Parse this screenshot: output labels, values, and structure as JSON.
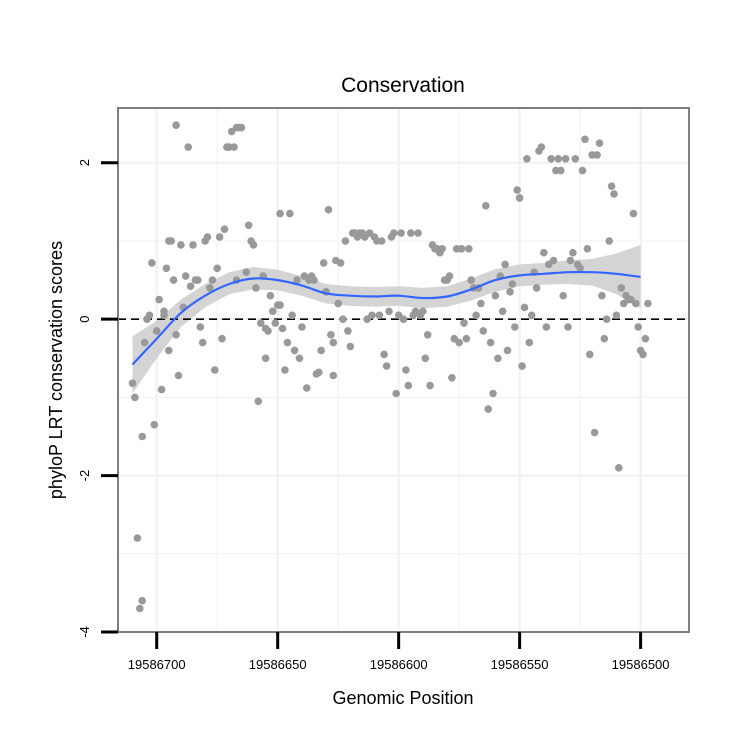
{
  "chart_data": {
    "type": "scatter",
    "title": "Conservation",
    "xlabel": "Genomic Position",
    "ylabel": "phyloP LRT conservation scores",
    "x_reversed": true,
    "xlim": [
      19586716,
      19586480
    ],
    "ylim": [
      -4,
      2.7
    ],
    "x_ticks": [
      19586700,
      19586650,
      19586600,
      19586550,
      19586500
    ],
    "x_tick_labels": [
      "19586700",
      "19586650",
      "19586600",
      "19586550",
      "19586500"
    ],
    "y_ticks": [
      -4,
      -2,
      0,
      2
    ],
    "y_tick_labels": [
      "-4",
      "-2",
      "0",
      "2"
    ],
    "reference_line": {
      "y": 0,
      "style": "dashed"
    },
    "grid": true,
    "colors": {
      "points": "#999999",
      "smooth_line": "#3366FF",
      "ribbon": "#cccccc",
      "grid": "#f0f0f0",
      "panel_border": "#7f7f7f"
    },
    "points": [
      {
        "x": 19586710,
        "y": -0.82
      },
      {
        "x": 19586709,
        "y": -1.0
      },
      {
        "x": 19586708,
        "y": -2.8
      },
      {
        "x": 19586707,
        "y": -3.7
      },
      {
        "x": 19586706,
        "y": -3.6
      },
      {
        "x": 19586706,
        "y": -1.5
      },
      {
        "x": 19586705,
        "y": -0.3
      },
      {
        "x": 19586704,
        "y": 0.0
      },
      {
        "x": 19586703,
        "y": 0.05
      },
      {
        "x": 19586702,
        "y": 0.72
      },
      {
        "x": 19586701,
        "y": -1.35
      },
      {
        "x": 19586700,
        "y": -0.15
      },
      {
        "x": 19586699,
        "y": 0.25
      },
      {
        "x": 19586698,
        "y": -0.9
      },
      {
        "x": 19586697,
        "y": 0.05
      },
      {
        "x": 19586697,
        "y": 0.1
      },
      {
        "x": 19586696,
        "y": 0.65
      },
      {
        "x": 19586695,
        "y": -0.4
      },
      {
        "x": 19586695,
        "y": 1.0
      },
      {
        "x": 19586694,
        "y": 1.0
      },
      {
        "x": 19586693,
        "y": 0.5
      },
      {
        "x": 19586692,
        "y": 2.48
      },
      {
        "x": 19586692,
        "y": -0.2
      },
      {
        "x": 19586691,
        "y": -0.72
      },
      {
        "x": 19586690,
        "y": 0.95
      },
      {
        "x": 19586689,
        "y": 0.15
      },
      {
        "x": 19586688,
        "y": 0.55
      },
      {
        "x": 19586687,
        "y": 2.2
      },
      {
        "x": 19586686,
        "y": 0.42
      },
      {
        "x": 19586685,
        "y": 0.95
      },
      {
        "x": 19586684,
        "y": 0.5
      },
      {
        "x": 19586683,
        "y": 0.5
      },
      {
        "x": 19586682,
        "y": -0.1
      },
      {
        "x": 19586681,
        "y": -0.3
      },
      {
        "x": 19586680,
        "y": 1.0
      },
      {
        "x": 19586679,
        "y": 1.05
      },
      {
        "x": 19586678,
        "y": 0.4
      },
      {
        "x": 19586677,
        "y": 0.5
      },
      {
        "x": 19586676,
        "y": -0.65
      },
      {
        "x": 19586675,
        "y": 0.65
      },
      {
        "x": 19586674,
        "y": 1.05
      },
      {
        "x": 19586673,
        "y": -0.25
      },
      {
        "x": 19586672,
        "y": 1.15
      },
      {
        "x": 19586671,
        "y": 2.2
      },
      {
        "x": 19586670,
        "y": 2.2
      },
      {
        "x": 19586669,
        "y": 2.4
      },
      {
        "x": 19586668,
        "y": 2.2
      },
      {
        "x": 19586667,
        "y": 2.45
      },
      {
        "x": 19586667,
        "y": 0.5
      },
      {
        "x": 19586666,
        "y": 2.45
      },
      {
        "x": 19586665,
        "y": 2.45
      },
      {
        "x": 19586663,
        "y": 0.6
      },
      {
        "x": 19586662,
        "y": 1.2
      },
      {
        "x": 19586661,
        "y": 1.0
      },
      {
        "x": 19586660,
        "y": 0.95
      },
      {
        "x": 19586659,
        "y": 0.4
      },
      {
        "x": 19586658,
        "y": -1.05
      },
      {
        "x": 19586657,
        "y": -0.05
      },
      {
        "x": 19586656,
        "y": 0.55
      },
      {
        "x": 19586655,
        "y": -0.12
      },
      {
        "x": 19586655,
        "y": -0.5
      },
      {
        "x": 19586654,
        "y": -0.15
      },
      {
        "x": 19586653,
        "y": 0.3
      },
      {
        "x": 19586652,
        "y": 0.1
      },
      {
        "x": 19586651,
        "y": -0.05
      },
      {
        "x": 19586650,
        "y": 0.18
      },
      {
        "x": 19586649,
        "y": 1.35
      },
      {
        "x": 19586649,
        "y": 0.18
      },
      {
        "x": 19586648,
        "y": -0.12
      },
      {
        "x": 19586647,
        "y": -0.65
      },
      {
        "x": 19586646,
        "y": -0.3
      },
      {
        "x": 19586645,
        "y": 1.35
      },
      {
        "x": 19586644,
        "y": 0.05
      },
      {
        "x": 19586643,
        "y": -0.4
      },
      {
        "x": 19586642,
        "y": 0.5
      },
      {
        "x": 19586641,
        "y": -0.5
      },
      {
        "x": 19586640,
        "y": -0.1
      },
      {
        "x": 19586639,
        "y": 0.55
      },
      {
        "x": 19586638,
        "y": -0.88
      },
      {
        "x": 19586637,
        "y": 0.5
      },
      {
        "x": 19586636,
        "y": 0.55
      },
      {
        "x": 19586635,
        "y": 0.5
      },
      {
        "x": 19586634,
        "y": -0.7
      },
      {
        "x": 19586633,
        "y": -0.68
      },
      {
        "x": 19586632,
        "y": -0.4
      },
      {
        "x": 19586631,
        "y": 0.72
      },
      {
        "x": 19586630,
        "y": 0.35
      },
      {
        "x": 19586629,
        "y": 1.4
      },
      {
        "x": 19586628,
        "y": -0.2
      },
      {
        "x": 19586627,
        "y": -0.3
      },
      {
        "x": 19586627,
        "y": -0.72
      },
      {
        "x": 19586626,
        "y": 0.75
      },
      {
        "x": 19586625,
        "y": 0.2
      },
      {
        "x": 19586624,
        "y": 0.72
      },
      {
        "x": 19586623,
        "y": 0.0
      },
      {
        "x": 19586622,
        "y": 1.0
      },
      {
        "x": 19586621,
        "y": -0.15
      },
      {
        "x": 19586620,
        "y": -0.35
      },
      {
        "x": 19586619,
        "y": 1.1
      },
      {
        "x": 19586618,
        "y": 1.1
      },
      {
        "x": 19586617,
        "y": 1.05
      },
      {
        "x": 19586616,
        "y": 1.1
      },
      {
        "x": 19586615,
        "y": 1.1
      },
      {
        "x": 19586614,
        "y": 1.05
      },
      {
        "x": 19586613,
        "y": 0.0
      },
      {
        "x": 19586612,
        "y": 1.1
      },
      {
        "x": 19586611,
        "y": 0.05
      },
      {
        "x": 19586610,
        "y": 1.05
      },
      {
        "x": 19586609,
        "y": 1.0
      },
      {
        "x": 19586608,
        "y": 0.05
      },
      {
        "x": 19586607,
        "y": 1.0
      },
      {
        "x": 19586606,
        "y": -0.45
      },
      {
        "x": 19586605,
        "y": -0.6
      },
      {
        "x": 19586604,
        "y": 0.1
      },
      {
        "x": 19586603,
        "y": 1.05
      },
      {
        "x": 19586602,
        "y": 1.1
      },
      {
        "x": 19586601,
        "y": -0.95
      },
      {
        "x": 19586600,
        "y": 0.05
      },
      {
        "x": 19586599,
        "y": 1.1
      },
      {
        "x": 19586598,
        "y": 0.0
      },
      {
        "x": 19586597,
        "y": -0.65
      },
      {
        "x": 19586596,
        "y": -0.85
      },
      {
        "x": 19586595,
        "y": 1.1
      },
      {
        "x": 19586594,
        "y": 0.05
      },
      {
        "x": 19586593,
        "y": 0.1
      },
      {
        "x": 19586592,
        "y": 1.1
      },
      {
        "x": 19586591,
        "y": 0.05
      },
      {
        "x": 19586590,
        "y": 0.1
      },
      {
        "x": 19586589,
        "y": -0.5
      },
      {
        "x": 19586588,
        "y": -0.2
      },
      {
        "x": 19586587,
        "y": -0.85
      },
      {
        "x": 19586586,
        "y": 0.95
      },
      {
        "x": 19586585,
        "y": 0.9
      },
      {
        "x": 19586584,
        "y": 0.9
      },
      {
        "x": 19586583,
        "y": 0.85
      },
      {
        "x": 19586582,
        "y": 0.9
      },
      {
        "x": 19586581,
        "y": 0.5
      },
      {
        "x": 19586580,
        "y": 0.5
      },
      {
        "x": 19586579,
        "y": 0.55
      },
      {
        "x": 19586578,
        "y": -0.75
      },
      {
        "x": 19586577,
        "y": -0.25
      },
      {
        "x": 19586576,
        "y": 0.9
      },
      {
        "x": 19586575,
        "y": -0.3
      },
      {
        "x": 19586574,
        "y": 0.9
      },
      {
        "x": 19586573,
        "y": -0.05
      },
      {
        "x": 19586572,
        "y": -0.25
      },
      {
        "x": 19586571,
        "y": 0.9
      },
      {
        "x": 19586570,
        "y": 0.5
      },
      {
        "x": 19586569,
        "y": 0.4
      },
      {
        "x": 19586568,
        "y": 0.05
      },
      {
        "x": 19586567,
        "y": 0.4
      },
      {
        "x": 19586566,
        "y": 0.2
      },
      {
        "x": 19586565,
        "y": -0.15
      },
      {
        "x": 19586564,
        "y": 1.45
      },
      {
        "x": 19586563,
        "y": -1.15
      },
      {
        "x": 19586562,
        "y": -0.3
      },
      {
        "x": 19586561,
        "y": -0.95
      },
      {
        "x": 19586560,
        "y": 0.3
      },
      {
        "x": 19586559,
        "y": -0.5
      },
      {
        "x": 19586558,
        "y": 0.55
      },
      {
        "x": 19586557,
        "y": 0.1
      },
      {
        "x": 19586556,
        "y": 0.7
      },
      {
        "x": 19586555,
        "y": -0.4
      },
      {
        "x": 19586554,
        "y": 0.35
      },
      {
        "x": 19586553,
        "y": 0.45
      },
      {
        "x": 19586552,
        "y": -0.1
      },
      {
        "x": 19586551,
        "y": 1.65
      },
      {
        "x": 19586550,
        "y": 1.55
      },
      {
        "x": 19586549,
        "y": -0.6
      },
      {
        "x": 19586548,
        "y": 0.15
      },
      {
        "x": 19586547,
        "y": 2.05
      },
      {
        "x": 19586546,
        "y": -0.3
      },
      {
        "x": 19586545,
        "y": 0.05
      },
      {
        "x": 19586544,
        "y": 0.6
      },
      {
        "x": 19586543,
        "y": 0.4
      },
      {
        "x": 19586542,
        "y": 2.15
      },
      {
        "x": 19586541,
        "y": 2.2
      },
      {
        "x": 19586540,
        "y": 0.85
      },
      {
        "x": 19586539,
        "y": -0.1
      },
      {
        "x": 19586538,
        "y": 0.7
      },
      {
        "x": 19586537,
        "y": 2.05
      },
      {
        "x": 19586536,
        "y": 0.75
      },
      {
        "x": 19586535,
        "y": 1.9
      },
      {
        "x": 19586534,
        "y": 2.05
      },
      {
        "x": 19586533,
        "y": 1.9
      },
      {
        "x": 19586532,
        "y": 0.3
      },
      {
        "x": 19586531,
        "y": 2.05
      },
      {
        "x": 19586530,
        "y": -0.1
      },
      {
        "x": 19586529,
        "y": 0.75
      },
      {
        "x": 19586528,
        "y": 0.85
      },
      {
        "x": 19586527,
        "y": 2.05
      },
      {
        "x": 19586526,
        "y": 0.7
      },
      {
        "x": 19586525,
        "y": 0.65
      },
      {
        "x": 19586524,
        "y": 1.9
      },
      {
        "x": 19586523,
        "y": 2.3
      },
      {
        "x": 19586522,
        "y": 0.9
      },
      {
        "x": 19586521,
        "y": -0.45
      },
      {
        "x": 19586520,
        "y": 2.1
      },
      {
        "x": 19586519,
        "y": -1.45
      },
      {
        "x": 19586518,
        "y": 2.1
      },
      {
        "x": 19586517,
        "y": 2.25
      },
      {
        "x": 19586516,
        "y": 0.3
      },
      {
        "x": 19586515,
        "y": -0.25
      },
      {
        "x": 19586514,
        "y": 0.0
      },
      {
        "x": 19586513,
        "y": 1.0
      },
      {
        "x": 19586512,
        "y": 1.7
      },
      {
        "x": 19586511,
        "y": 1.6
      },
      {
        "x": 19586510,
        "y": 0.05
      },
      {
        "x": 19586509,
        "y": -1.9
      },
      {
        "x": 19586508,
        "y": 0.4
      },
      {
        "x": 19586507,
        "y": 0.2
      },
      {
        "x": 19586506,
        "y": 0.3
      },
      {
        "x": 19586505,
        "y": 0.25
      },
      {
        "x": 19586504,
        "y": 0.25
      },
      {
        "x": 19586503,
        "y": 1.35
      },
      {
        "x": 19586502,
        "y": 0.2
      },
      {
        "x": 19586501,
        "y": -0.1
      },
      {
        "x": 19586500,
        "y": -0.4
      },
      {
        "x": 19586499,
        "y": -0.45
      },
      {
        "x": 19586498,
        "y": -0.25
      },
      {
        "x": 19586497,
        "y": 0.2
      }
    ],
    "smooth": {
      "method": "loess",
      "points": [
        {
          "x": 19586710,
          "y": -0.58,
          "lower": -0.95,
          "upper": -0.22
        },
        {
          "x": 19586700,
          "y": -0.25,
          "lower": -0.5,
          "upper": -0.02
        },
        {
          "x": 19586690,
          "y": 0.08,
          "lower": -0.1,
          "upper": 0.25
        },
        {
          "x": 19586680,
          "y": 0.3,
          "lower": 0.15,
          "upper": 0.45
        },
        {
          "x": 19586670,
          "y": 0.45,
          "lower": 0.32,
          "upper": 0.6
        },
        {
          "x": 19586660,
          "y": 0.52,
          "lower": 0.38,
          "upper": 0.67
        },
        {
          "x": 19586650,
          "y": 0.5,
          "lower": 0.37,
          "upper": 0.63
        },
        {
          "x": 19586640,
          "y": 0.43,
          "lower": 0.3,
          "upper": 0.55
        },
        {
          "x": 19586630,
          "y": 0.33,
          "lower": 0.2,
          "upper": 0.45
        },
        {
          "x": 19586620,
          "y": 0.3,
          "lower": 0.17,
          "upper": 0.42
        },
        {
          "x": 19586610,
          "y": 0.29,
          "lower": 0.16,
          "upper": 0.41
        },
        {
          "x": 19586600,
          "y": 0.3,
          "lower": 0.17,
          "upper": 0.42
        },
        {
          "x": 19586590,
          "y": 0.27,
          "lower": 0.14,
          "upper": 0.4
        },
        {
          "x": 19586580,
          "y": 0.29,
          "lower": 0.16,
          "upper": 0.42
        },
        {
          "x": 19586570,
          "y": 0.38,
          "lower": 0.24,
          "upper": 0.52
        },
        {
          "x": 19586560,
          "y": 0.5,
          "lower": 0.35,
          "upper": 0.64
        },
        {
          "x": 19586550,
          "y": 0.56,
          "lower": 0.42,
          "upper": 0.7
        },
        {
          "x": 19586540,
          "y": 0.58,
          "lower": 0.44,
          "upper": 0.72
        },
        {
          "x": 19586530,
          "y": 0.6,
          "lower": 0.45,
          "upper": 0.75
        },
        {
          "x": 19586520,
          "y": 0.6,
          "lower": 0.43,
          "upper": 0.77
        },
        {
          "x": 19586510,
          "y": 0.58,
          "lower": 0.32,
          "upper": 0.84
        },
        {
          "x": 19586500,
          "y": 0.54,
          "lower": 0.14,
          "upper": 0.95
        }
      ]
    }
  }
}
